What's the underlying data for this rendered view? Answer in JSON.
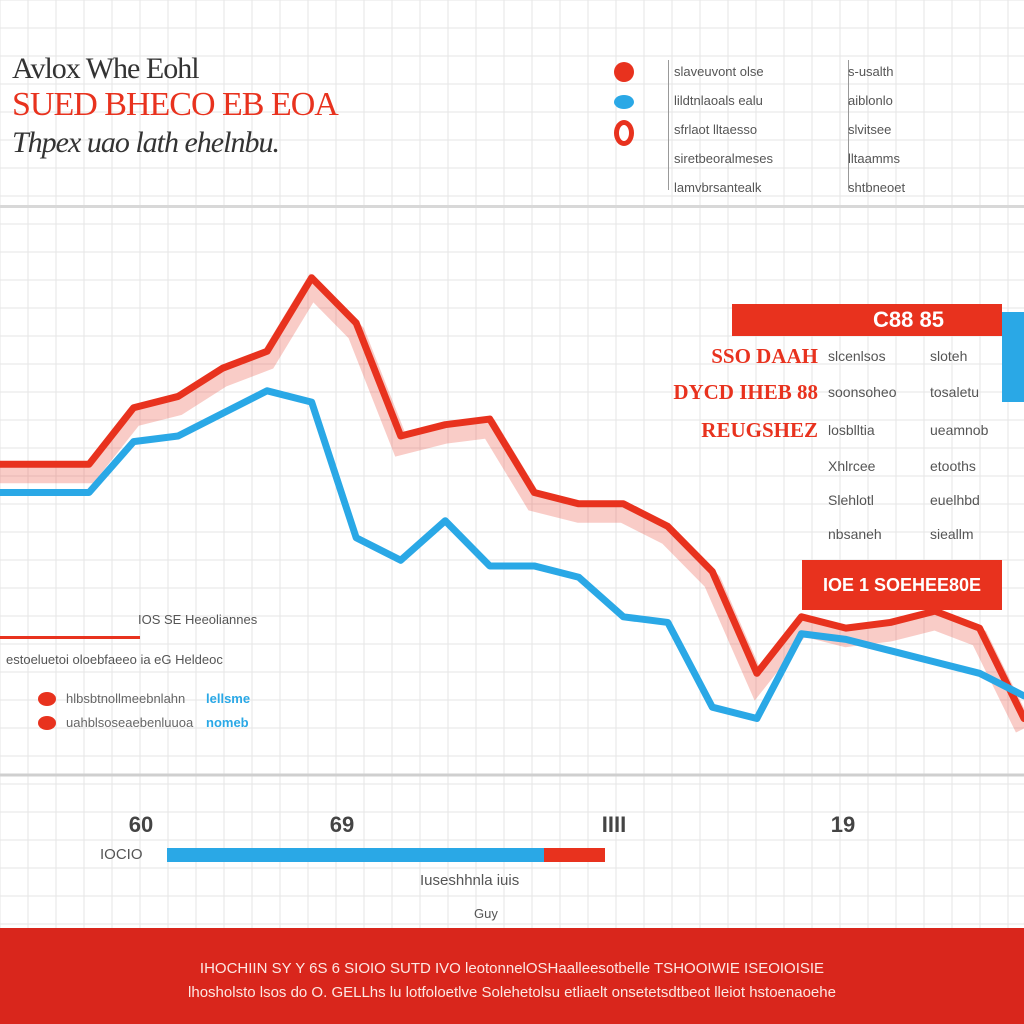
{
  "header": {
    "title_line1": "Avlox Whe Eohl",
    "title_line2": "SUED BHECO EB EOA",
    "subtitle": "Thpex uao lath ehelnbu."
  },
  "top_legend": {
    "items": [
      {
        "color": "#e8321e",
        "label": "slaveuvont olse",
        "value": "s-usalth"
      },
      {
        "color": "#2aa8e6",
        "label": "lildtnlaoals ealu",
        "value": "aiblonlo"
      },
      {
        "color": "#e8321e",
        "label": "sfrlaot lltaesso",
        "value": "slvitsee"
      },
      {
        "color": "",
        "label": "siretbeoralmeses",
        "value": "lltaamms"
      },
      {
        "color": "",
        "label": "lamvbrsantealk",
        "value": "shtbneoet"
      }
    ]
  },
  "callout": {
    "header": "C88 85",
    "rows": [
      {
        "label": "SSO DAAH",
        "v1": "slcenlsos",
        "v2": "sloteh"
      },
      {
        "label": "DYCD IHEB 88",
        "v1": "soonsoheo",
        "v2": "tosaletu"
      },
      {
        "label": "REUGSHEZ",
        "v1": "losblltia",
        "v2": "ueamnob"
      },
      {
        "label": "",
        "v1": "Xhlrcee",
        "v2": "etooths"
      },
      {
        "label": "",
        "v1": "Slehlotl",
        "v2": "euelhbd"
      },
      {
        "label": "",
        "v1": "nbsaneh",
        "v2": "sieallm"
      }
    ],
    "bottom_text": "IOE 1 SOEHEE80E"
  },
  "lower_legend": {
    "title": "IOS SE Heeoliannes",
    "subtitle": "estoeluetoi oloebfaeeo ia eG Heldeoc",
    "items": [
      {
        "label": "hlbsbtnollmeebnlahn",
        "value": "lellsme"
      },
      {
        "label": "uahblsoseaebenluuoa",
        "value": "nomeb"
      }
    ]
  },
  "progress": {
    "label": "IOCIO",
    "fraction": 0.86
  },
  "x_axis": {
    "ticks": [
      "60",
      "69",
      "IIII",
      "19"
    ],
    "label": "Iuseshhnla iuis",
    "unit": "Guy"
  },
  "footer": {
    "line1": "IHOCHIIN SY Y 6S 6 SIOIO SUTD IVO leotonnelOSHaalleesotbelle TSHOOIWIE ISEOIOISIE",
    "line2": "lhosholsto lsos do O. GELLhs lu lotfoloetlve Solehetolsu etliaelt onsetetsdtbeot lleiot hstoenaoehe"
  },
  "colors": {
    "accent_red": "#e8321e",
    "accent_blue": "#2aa8e6",
    "footer_red": "#d9261c"
  },
  "chart_data": {
    "type": "line",
    "title": "SUED BHECO EB EOA",
    "xlabel": "Iuseshhnla iuis",
    "ylabel": "",
    "x": [
      0,
      1,
      2,
      3,
      4,
      5,
      6,
      7,
      8,
      9,
      10,
      11,
      12,
      13,
      14,
      15,
      16,
      17,
      18,
      19,
      20,
      21,
      22,
      23
    ],
    "xlim": [
      0,
      23
    ],
    "ylim": [
      0,
      100
    ],
    "grid": true,
    "legend": "top-right",
    "series": [
      {
        "color": "#e8321e",
        "values": [
          55,
          55,
          55,
          65,
          67,
          72,
          75,
          88,
          80,
          60,
          62,
          63,
          50,
          48,
          48,
          44,
          36,
          18,
          28,
          26,
          27,
          29,
          26,
          10
        ]
      },
      {
        "color": "#2aa8e6",
        "values": [
          50,
          50,
          50,
          59,
          60,
          64,
          68,
          66,
          42,
          38,
          45,
          37,
          37,
          35,
          28,
          27,
          12,
          10,
          25,
          24,
          22,
          20,
          18,
          14
        ]
      }
    ]
  }
}
